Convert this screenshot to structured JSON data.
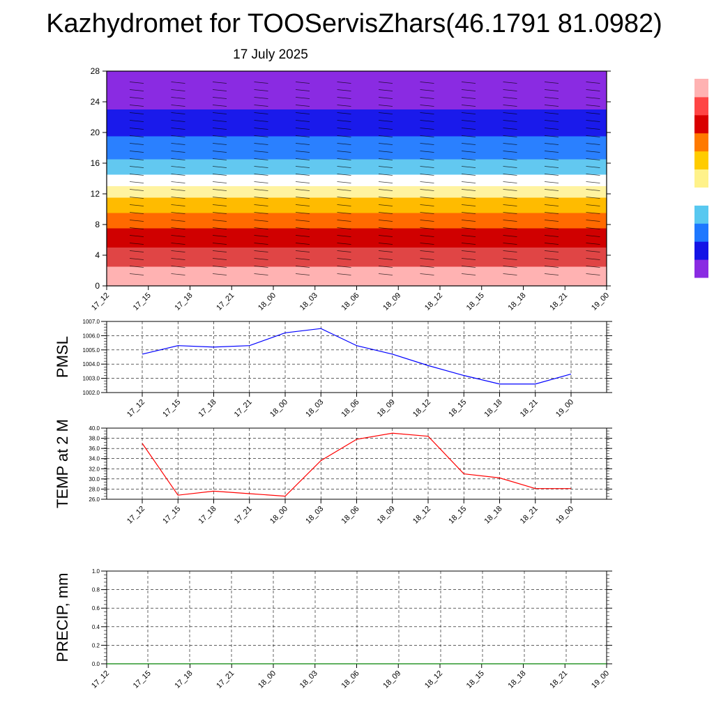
{
  "header": {
    "title": "Kazhydromet for TOOServisZhars(46.1791 81.0982)",
    "date": "17 July 2025"
  },
  "chart_data": [
    {
      "type": "heatmap",
      "panel": "cross-section",
      "xlabel": "",
      "ylabel": "",
      "x_ticks": [
        "17_12",
        "17_15",
        "17_18",
        "17_21",
        "18_00",
        "18_03",
        "18_06",
        "18_09",
        "18_12",
        "18_15",
        "18_18",
        "18_21",
        "19_00"
      ],
      "y_ticks": [
        "0",
        "4",
        "8",
        "12",
        "16",
        "20",
        "24",
        "28"
      ],
      "ylim": [
        0,
        28
      ],
      "colorbar_colors": [
        "#ffb2b2",
        "#ff4545",
        "#d90000",
        "#ff7a00",
        "#ffcc00",
        "#fff28a",
        "#ffffff",
        "#58c8f0",
        "#1e78ff",
        "#1414e6",
        "#8a2be2"
      ],
      "color_bands": [
        {
          "y0": 0,
          "y1": 2.5,
          "color": "#ffb2b2"
        },
        {
          "y0": 2.5,
          "y1": 5.0,
          "color": "#e04545"
        },
        {
          "y0": 5.0,
          "y1": 7.5,
          "color": "#d00000"
        },
        {
          "y0": 7.5,
          "y1": 9.5,
          "color": "#ff6a00"
        },
        {
          "y0": 9.5,
          "y1": 11.5,
          "color": "#ffbb00"
        },
        {
          "y0": 11.5,
          "y1": 13.0,
          "color": "#fff3a0"
        },
        {
          "y0": 13.0,
          "y1": 14.5,
          "color": "#ffffff"
        },
        {
          "y0": 14.5,
          "y1": 16.5,
          "color": "#62c8f0"
        },
        {
          "y0": 16.5,
          "y1": 19.5,
          "color": "#2a80ff"
        },
        {
          "y0": 19.5,
          "y1": 23.0,
          "color": "#1a1aeb"
        },
        {
          "y0": 23.0,
          "y1": 28.0,
          "color": "#8a2be2"
        }
      ]
    },
    {
      "type": "line",
      "panel": "pmsl",
      "ylabel": "PMSL",
      "categories": [
        "17_12",
        "17_15",
        "17_18",
        "17_21",
        "18_00",
        "18_03",
        "18_06",
        "18_09",
        "18_12",
        "18_15",
        "18_18",
        "18_21",
        "19_00"
      ],
      "series": [
        {
          "values": [
            1004.7,
            1005.3,
            1005.2,
            1005.3,
            1006.2,
            1006.5,
            1005.3,
            1004.7,
            1003.9,
            1003.2,
            1002.6,
            1002.6,
            1003.3
          ],
          "color": "#0000ff"
        }
      ],
      "ylim": [
        1002.0,
        1007.0
      ],
      "y_ticks": [
        "1002.0",
        "1003.0",
        "1004.0",
        "1005.0",
        "1006.0",
        "1007.0"
      ]
    },
    {
      "type": "line",
      "panel": "temp2m",
      "ylabel": "TEMP at 2 M",
      "categories": [
        "17_12",
        "17_15",
        "17_18",
        "17_21",
        "18_00",
        "18_03",
        "18_06",
        "18_09",
        "18_12",
        "18_15",
        "18_18",
        "18_21",
        "19_00"
      ],
      "series": [
        {
          "values": [
            37.0,
            26.8,
            27.6,
            27.1,
            26.6,
            33.6,
            37.8,
            39.0,
            38.4,
            31.0,
            30.2,
            28.1,
            28.1
          ],
          "color": "#ff0000"
        }
      ],
      "ylim": [
        26.0,
        40.0
      ],
      "y_ticks": [
        "26.0",
        "28.0",
        "30.0",
        "32.0",
        "34.0",
        "36.0",
        "38.0",
        "40.0"
      ]
    },
    {
      "type": "line",
      "panel": "precip",
      "ylabel": "PRECIP, mm",
      "categories": [
        "17_12",
        "17_15",
        "17_18",
        "17_21",
        "18_00",
        "18_03",
        "18_06",
        "18_09",
        "18_12",
        "18_15",
        "18_18",
        "18_21",
        "19_00"
      ],
      "series": [
        {
          "values": [
            0,
            0,
            0,
            0,
            0,
            0,
            0,
            0,
            0,
            0,
            0,
            0,
            0
          ],
          "color": "#008000"
        }
      ],
      "ylim": [
        0.0,
        1.0
      ],
      "y_ticks": [
        "0.0",
        "0.2",
        "0.4",
        "0.6",
        "0.8",
        "1.0"
      ]
    }
  ]
}
